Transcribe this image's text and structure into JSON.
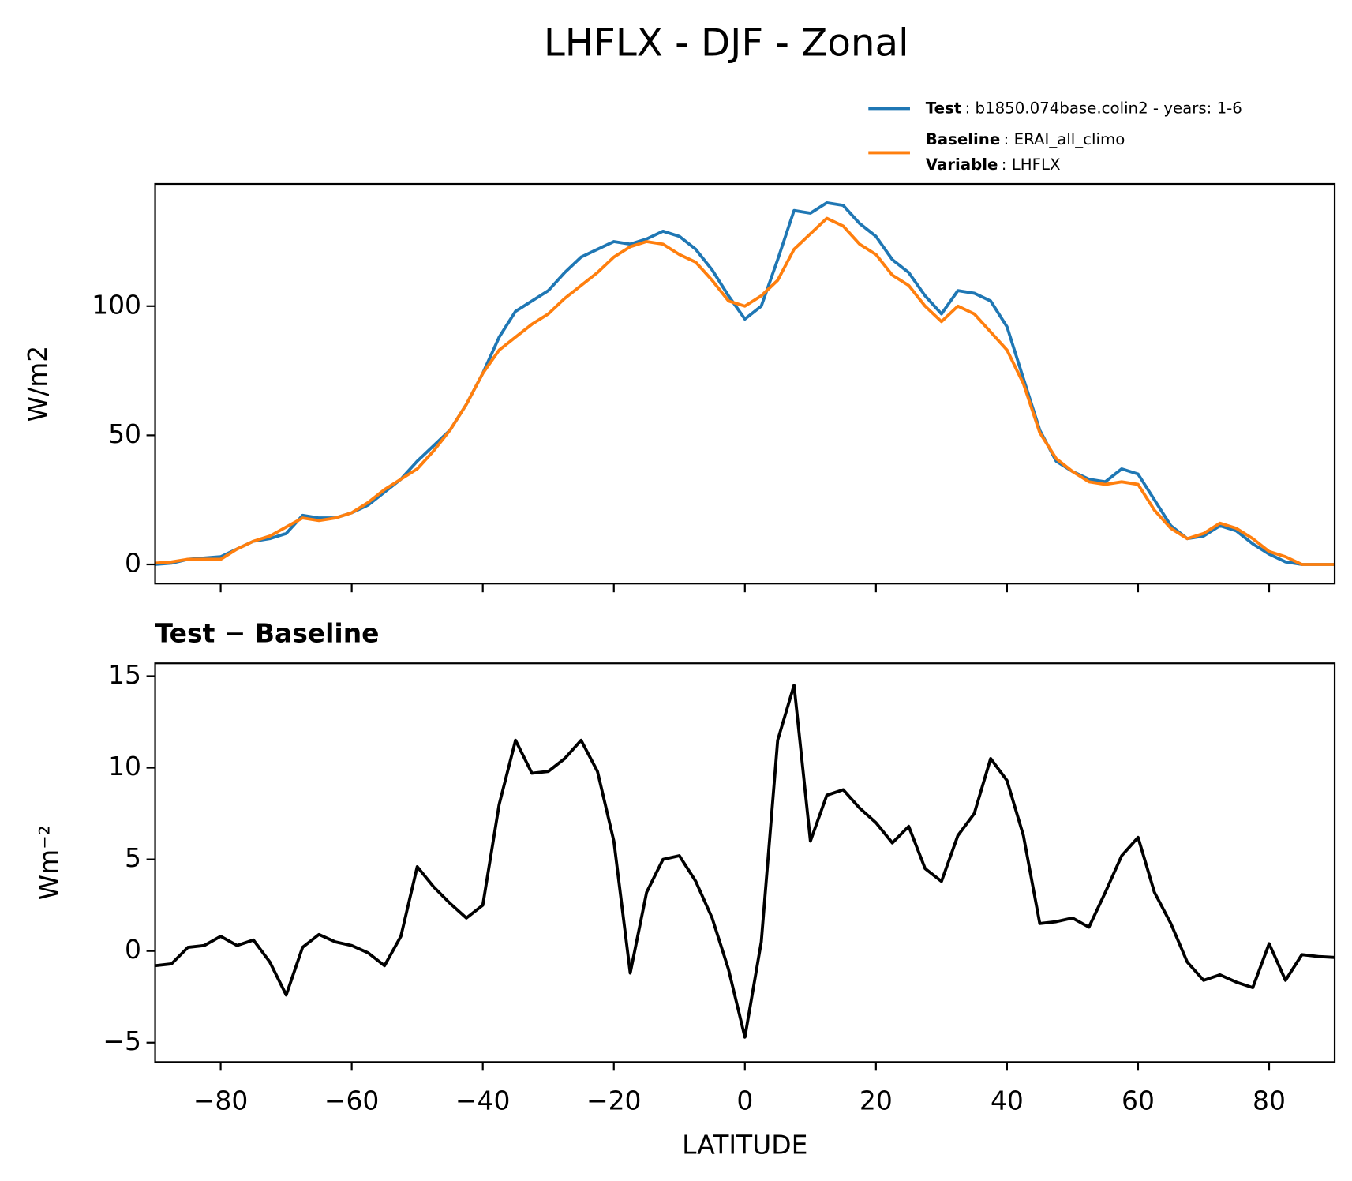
{
  "title": "LHFLX - DJF - Zonal",
  "chart_data": [
    {
      "type": "line",
      "ylabel": "W/m2",
      "x": [
        -90,
        -87.5,
        -85,
        -82.5,
        -80,
        -77.5,
        -75,
        -72.5,
        -70,
        -67.5,
        -65,
        -62.5,
        -60,
        -57.5,
        -55,
        -52.5,
        -50,
        -47.5,
        -45,
        -42.5,
        -40,
        -37.5,
        -35,
        -32.5,
        -30,
        -27.5,
        -25,
        -22.5,
        -20,
        -17.5,
        -15,
        -12.5,
        -10,
        -7.5,
        -5,
        -2.5,
        0,
        2.5,
        5,
        7.5,
        10,
        12.5,
        15,
        17.5,
        20,
        22.5,
        25,
        27.5,
        30,
        32.5,
        35,
        37.5,
        40,
        42.5,
        45,
        47.5,
        50,
        52.5,
        55,
        57.5,
        60,
        62.5,
        65,
        67.5,
        70,
        72.5,
        75,
        77.5,
        80,
        82.5,
        85,
        87.5,
        90
      ],
      "series": [
        {
          "name": "Test",
          "description": ": b1850.074base.colin2 - years: 1-6",
          "color": "#1f77b4",
          "values": [
            0,
            0.5,
            2,
            2.5,
            3,
            6,
            9,
            10,
            12,
            19,
            18,
            18,
            20,
            23,
            28,
            33,
            40,
            46,
            52,
            62,
            74,
            88,
            98,
            102,
            106,
            113,
            119,
            122,
            125,
            124,
            126,
            129,
            127,
            122,
            114,
            104,
            95,
            100,
            118,
            137,
            136,
            140,
            139,
            132,
            127,
            118,
            113,
            104,
            97,
            106,
            105,
            102,
            92,
            72,
            52,
            40,
            36,
            33,
            32,
            37,
            35,
            25,
            15,
            10,
            11,
            15,
            13,
            8,
            4,
            1,
            0,
            0,
            0
          ]
        },
        {
          "name": "Baseline",
          "description": ": ERAI_all_climo",
          "color": "#ff7f0e",
          "values": [
            0.5,
            1,
            2,
            2,
            2,
            6,
            9,
            11,
            14.5,
            18,
            17,
            18,
            20,
            24,
            29,
            33,
            37,
            44,
            52,
            62,
            74,
            83,
            88,
            93,
            97,
            103,
            108,
            113,
            119,
            123,
            125,
            124,
            120,
            117,
            110,
            102,
            100,
            104,
            110,
            122,
            128,
            134,
            131,
            124,
            120,
            112,
            108,
            100,
            94,
            100,
            97,
            90,
            83,
            70,
            51,
            41,
            36,
            32,
            31,
            32,
            31,
            21,
            14,
            10,
            12,
            16,
            14,
            10,
            5,
            3,
            0,
            0,
            0
          ]
        }
      ],
      "legend_extra": {
        "label": "Variable",
        "text": ": LHFLX"
      },
      "xlim": [
        -90,
        90
      ],
      "ylim": [
        -7.4,
        147.3
      ],
      "yticks": [
        0,
        50,
        100
      ]
    },
    {
      "type": "line",
      "title": "Test − Baseline",
      "ylabel": "Wm⁻²",
      "xlabel": "LATITUDE",
      "x": [
        -90,
        -87.5,
        -85,
        -82.5,
        -80,
        -77.5,
        -75,
        -72.5,
        -70,
        -67.5,
        -65,
        -62.5,
        -60,
        -57.5,
        -55,
        -52.5,
        -50,
        -47.5,
        -45,
        -42.5,
        -40,
        -37.5,
        -35,
        -32.5,
        -30,
        -27.5,
        -25,
        -22.5,
        -20,
        -17.5,
        -15,
        -12.5,
        -10,
        -7.5,
        -5,
        -2.5,
        0,
        2.5,
        5,
        7.5,
        10,
        12.5,
        15,
        17.5,
        20,
        22.5,
        25,
        27.5,
        30,
        32.5,
        35,
        37.5,
        40,
        42.5,
        45,
        47.5,
        50,
        52.5,
        55,
        57.5,
        60,
        62.5,
        65,
        67.5,
        70,
        72.5,
        75,
        77.5,
        80,
        82.5,
        85,
        87.5,
        90
      ],
      "series": [
        {
          "color": "#000000",
          "values": [
            -0.8,
            -0.7,
            0.2,
            0.3,
            0.8,
            0.3,
            0.6,
            -0.6,
            -2.4,
            0.2,
            0.9,
            0.5,
            0.3,
            -0.1,
            -0.8,
            0.8,
            4.6,
            3.5,
            2.6,
            1.8,
            2.5,
            8,
            11.5,
            9.7,
            9.8,
            10.5,
            11.5,
            9.8,
            6,
            -1.2,
            3.2,
            5,
            5.2,
            3.8,
            1.8,
            -1,
            -4.7,
            0.5,
            11.5,
            14.5,
            6,
            8.5,
            8.8,
            7.8,
            7,
            5.9,
            6.8,
            4.5,
            3.8,
            6.3,
            7.5,
            10.5,
            9.3,
            6.3,
            1.5,
            1.6,
            1.8,
            1.3,
            3.2,
            5.2,
            6.2,
            3.2,
            1.5,
            -0.6,
            -1.6,
            -1.3,
            -1.7,
            -2,
            0.4,
            -1.6,
            -0.2,
            -0.3,
            -0.35
          ]
        }
      ],
      "xlim": [
        -90,
        90
      ],
      "ylim": [
        -6.06,
        15.7
      ],
      "xticks": [
        {
          "value": -80,
          "label": "−80"
        },
        {
          "value": -60,
          "label": "−60"
        },
        {
          "value": -40,
          "label": "−40"
        },
        {
          "value": -20,
          "label": "−20"
        },
        0,
        20,
        40,
        60,
        80
      ],
      "yticks": [
        {
          "value": -5,
          "label": "−5"
        },
        0,
        5,
        10,
        15
      ]
    }
  ]
}
